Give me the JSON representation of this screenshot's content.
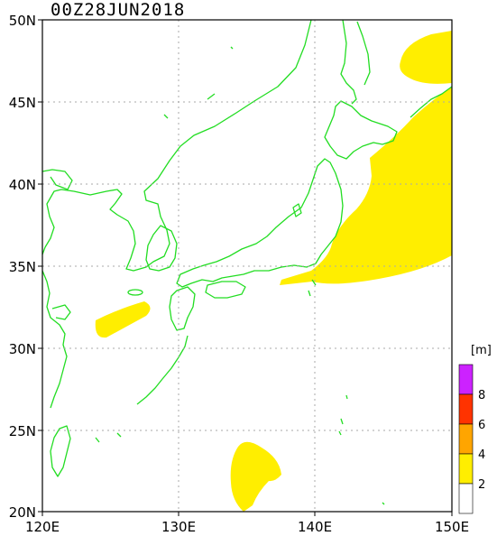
{
  "title": "00Z28JUN2018",
  "lat_labels": [
    "50N",
    "45N",
    "40N",
    "35N",
    "30N",
    "25N",
    "20N"
  ],
  "lon_labels": [
    "120E",
    "130E",
    "140E",
    "150E"
  ],
  "colors": {
    "coast": "#22dd22",
    "wave_2_4": "#ffee00",
    "wave_4_6": "#ffa500",
    "wave_6_8": "#ff3300",
    "wave_8_plus": "#cc22ff",
    "wave_0_2": "#ffffff",
    "grid": "#aaaaaa"
  },
  "legend": {
    "unit": "[m]",
    "labels": [
      "8",
      "6",
      "4",
      "2"
    ]
  }
}
